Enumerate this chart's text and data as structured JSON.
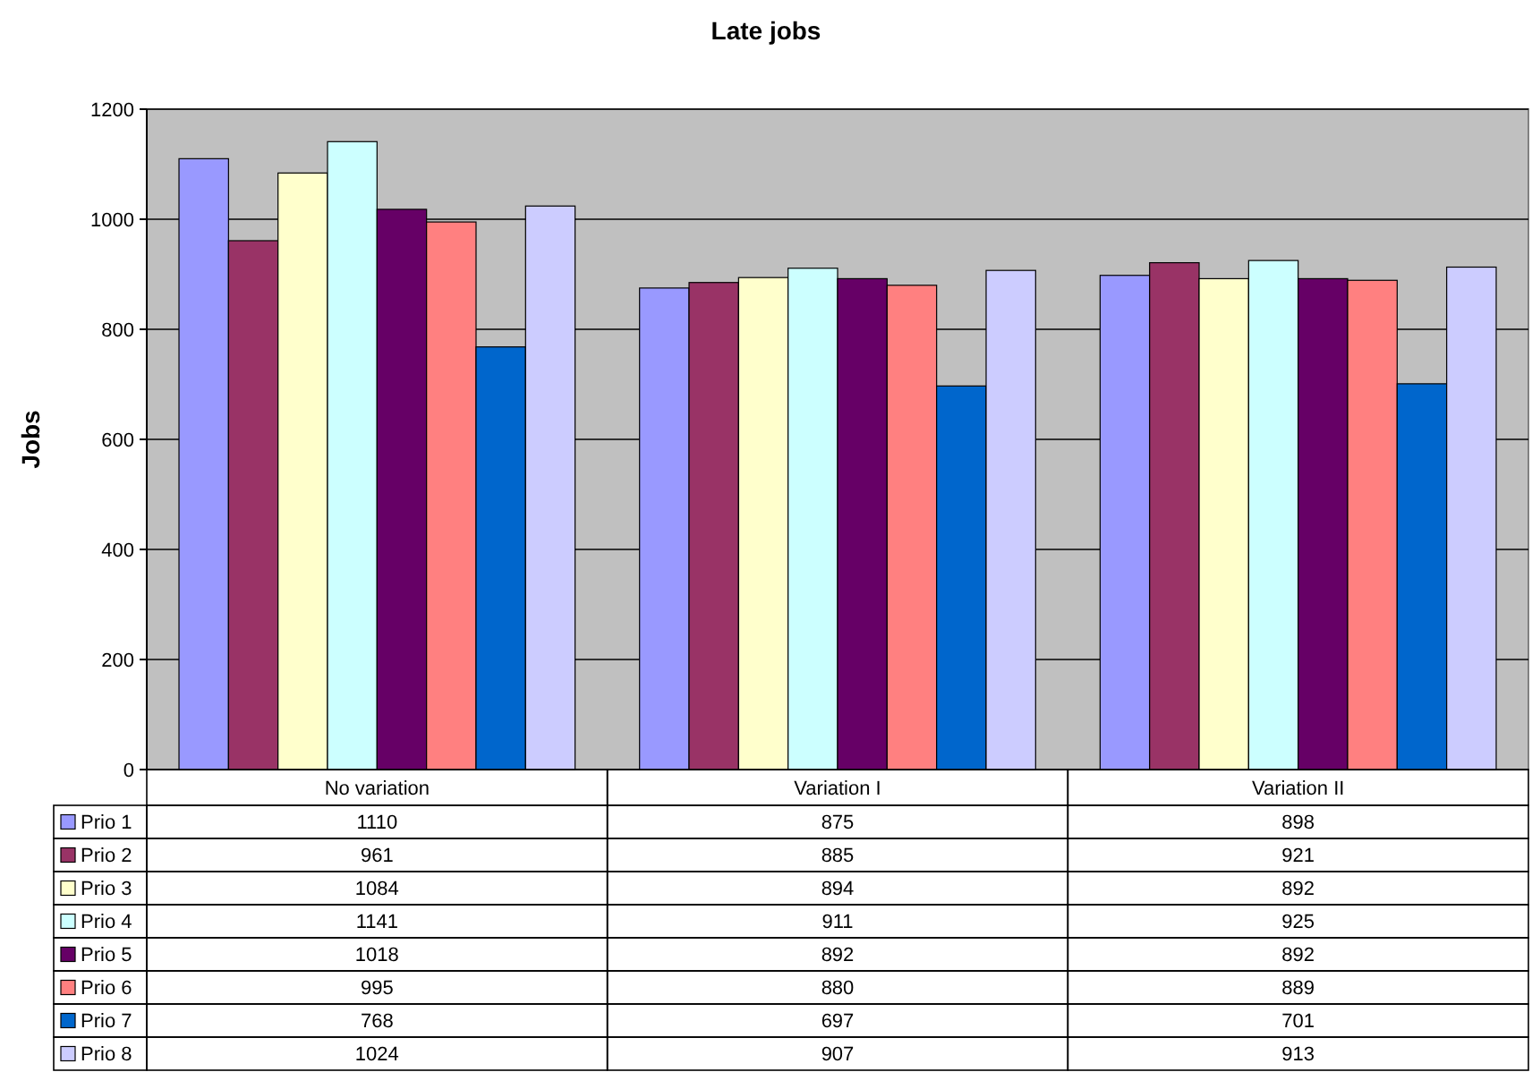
{
  "chart_data": {
    "type": "bar",
    "title": "Late jobs",
    "ylabel": "Jobs",
    "categories": [
      "No variation",
      "Variation I",
      "Variation II"
    ],
    "series": [
      {
        "name": "Prio 1",
        "color": "#9999ff",
        "values": [
          1110,
          875,
          898
        ]
      },
      {
        "name": "Prio 2",
        "color": "#993366",
        "values": [
          961,
          885,
          921
        ]
      },
      {
        "name": "Prio 3",
        "color": "#ffffcc",
        "values": [
          1084,
          894,
          892
        ]
      },
      {
        "name": "Prio 4",
        "color": "#ccffff",
        "values": [
          1141,
          911,
          925
        ]
      },
      {
        "name": "Prio 5",
        "color": "#660066",
        "values": [
          1018,
          892,
          892
        ]
      },
      {
        "name": "Prio 6",
        "color": "#ff8080",
        "values": [
          995,
          880,
          889
        ]
      },
      {
        "name": "Prio 7",
        "color": "#0066cc",
        "values": [
          768,
          697,
          701
        ]
      },
      {
        "name": "Prio 8",
        "color": "#ccccff",
        "values": [
          1024,
          907,
          913
        ]
      }
    ],
    "ylim": [
      0,
      1200
    ],
    "yticks": [
      0,
      200,
      400,
      600,
      800,
      1000,
      1200
    ],
    "grid": "y",
    "legend": "bottom",
    "data_labels": true
  }
}
